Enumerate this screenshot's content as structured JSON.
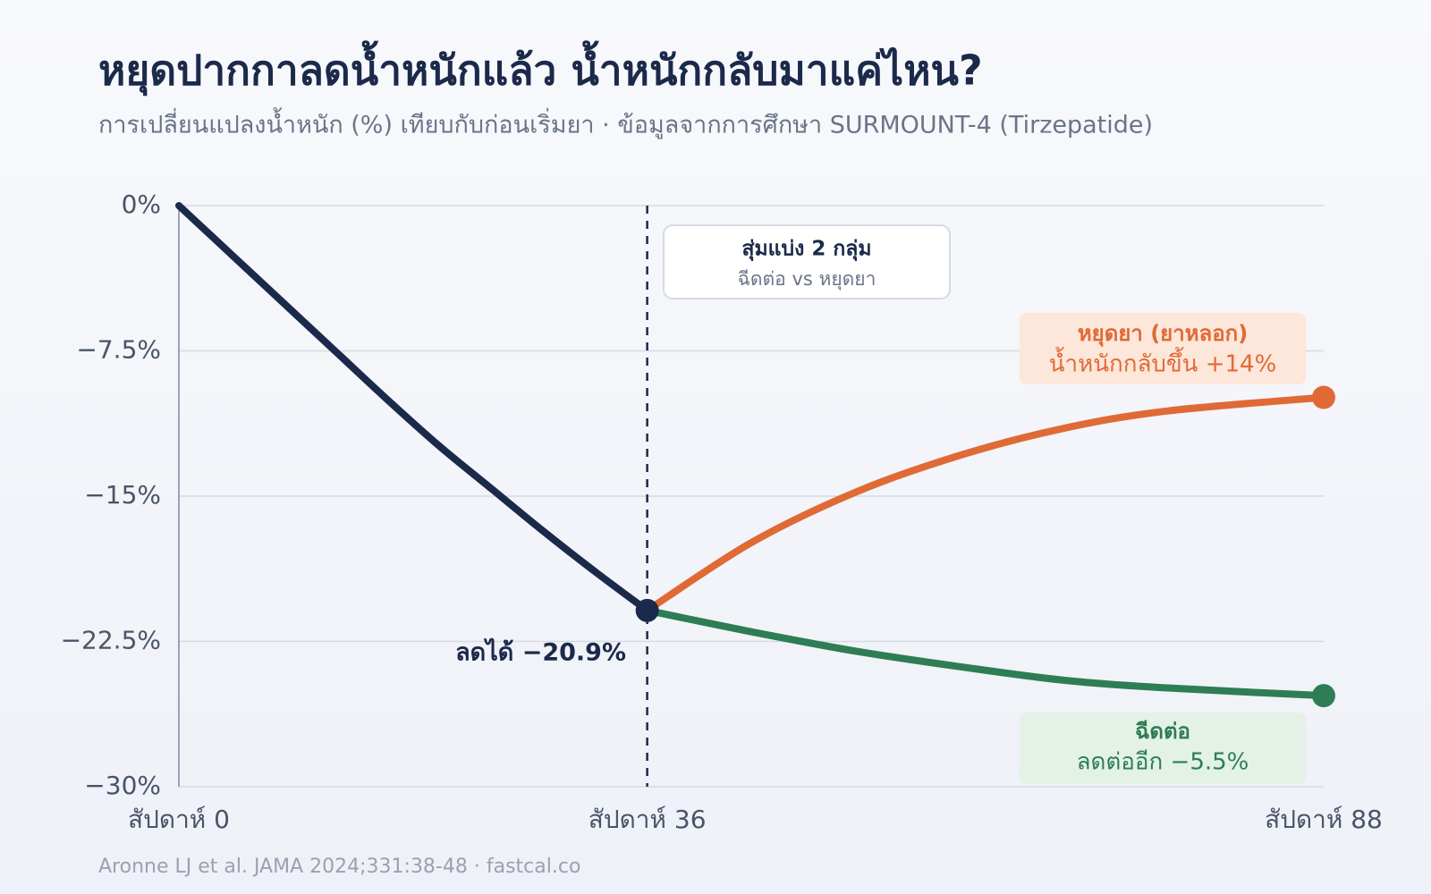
{
  "chart_data": {
    "type": "line",
    "title": "หยุดปากกาลดน้ำหนักแล้ว น้ำหนักกลับมาแค่ไหน?",
    "subtitle": "การเปลี่ยนแปลงน้ำหนัก (%) เทียบกับก่อนเริ่มยา · ข้อมูลจากการศึกษา SURMOUNT-4 (Tirzepatide)",
    "source": "Aronne LJ et al. JAMA 2024;331:38-48 · fastcal.co",
    "xlim": [
      0,
      88
    ],
    "xticks": [
      {
        "value": 0,
        "label": "สัปดาห์ 0"
      },
      {
        "value": 36,
        "label": "สัปดาห์ 36"
      },
      {
        "value": 88,
        "label": "สัปดาห์ 88"
      }
    ],
    "ylim": [
      -30,
      0
    ],
    "yticks": [
      {
        "value": 0,
        "label": "0%"
      },
      {
        "value": -7.5,
        "label": "−7.5%"
      },
      {
        "value": -15,
        "label": "−15%"
      },
      {
        "value": -22.5,
        "label": "−22.5%"
      },
      {
        "value": -30,
        "label": "−30%"
      }
    ],
    "grid": true,
    "vline": 36,
    "series": [
      {
        "color": "#1b2a4a",
        "x": [
          0,
          4,
          8,
          12,
          16,
          20,
          24,
          28,
          32,
          36
        ],
        "values": [
          0,
          -2.5,
          -5.0,
          -7.5,
          -10.0,
          -12.4,
          -14.6,
          -16.8,
          -18.9,
          -20.9
        ]
      },
      {
        "name": "หยุดยา (ยาหลอก)",
        "color": "#e06a35",
        "x": [
          36,
          44,
          52,
          60,
          68,
          76,
          88
        ],
        "values": [
          -20.9,
          -17.4,
          -14.8,
          -12.9,
          -11.5,
          -10.6,
          -9.9
        ]
      },
      {
        "name": "ฉีดต่อ",
        "color": "#2e7d55",
        "x": [
          36,
          44,
          52,
          60,
          68,
          76,
          88
        ],
        "values": [
          -20.9,
          -22.0,
          -23.0,
          -23.8,
          -24.5,
          -24.9,
          -25.3
        ]
      }
    ],
    "annotations": {
      "split_title": "สุ่มแบ่ง 2 กลุ่ม",
      "split_text": "ฉีดต่อ vs หยุดยา",
      "stopped_text": "น้ำหนักกลับขึ้น +14%",
      "continued_text": "ลดต่ออีก −5.5%",
      "milestone": "ลดได้ −20.9%"
    }
  }
}
